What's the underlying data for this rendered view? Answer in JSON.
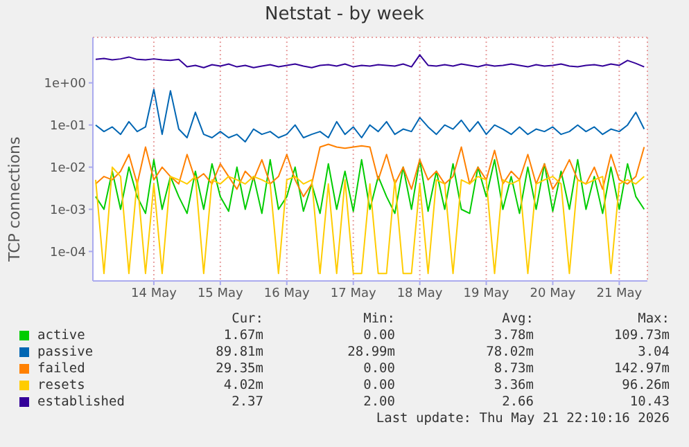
{
  "chart_data": {
    "type": "line",
    "title": "Netstat - by week",
    "ylabel": "TCP connections",
    "log": "y",
    "grid": true,
    "legend": "bottom",
    "xlim": [
      "2026-05-13T14:00",
      "2026-05-21T22:10"
    ],
    "xticks": [
      {
        "value": "2026-05-14T12:00",
        "label": "14 May"
      },
      {
        "value": "2026-05-15T12:00",
        "label": "15 May"
      },
      {
        "value": "2026-05-16T12:00",
        "label": "16 May"
      },
      {
        "value": "2026-05-17T12:00",
        "label": "17 May"
      },
      {
        "value": "2026-05-18T12:00",
        "label": "18 May"
      },
      {
        "value": "2026-05-19T12:00",
        "label": "19 May"
      },
      {
        "value": "2026-05-20T12:00",
        "label": "20 May"
      },
      {
        "value": "2026-05-21T12:00",
        "label": "21 May"
      }
    ],
    "ylim": [
      2e-05,
      12
    ],
    "yticks": [
      {
        "value": 0.0001,
        "label": "1e-04"
      },
      {
        "value": 0.001,
        "label": "1e-03"
      },
      {
        "value": 0.01,
        "label": "1e-02"
      },
      {
        "value": 0.1,
        "label": "1e-01"
      },
      {
        "value": 1,
        "label": "1e+00"
      }
    ],
    "x": [
      "2026-05-13T15:00",
      "2026-05-13T18:00",
      "2026-05-13T21:00",
      "2026-05-14T00:00",
      "2026-05-14T03:00",
      "2026-05-14T06:00",
      "2026-05-14T09:00",
      "2026-05-14T12:00",
      "2026-05-14T15:00",
      "2026-05-14T18:00",
      "2026-05-14T21:00",
      "2026-05-15T00:00",
      "2026-05-15T03:00",
      "2026-05-15T06:00",
      "2026-05-15T09:00",
      "2026-05-15T12:00",
      "2026-05-15T15:00",
      "2026-05-15T18:00",
      "2026-05-15T21:00",
      "2026-05-16T00:00",
      "2026-05-16T03:00",
      "2026-05-16T06:00",
      "2026-05-16T09:00",
      "2026-05-16T12:00",
      "2026-05-16T15:00",
      "2026-05-16T18:00",
      "2026-05-16T21:00",
      "2026-05-17T00:00",
      "2026-05-17T03:00",
      "2026-05-17T06:00",
      "2026-05-17T09:00",
      "2026-05-17T12:00",
      "2026-05-17T15:00",
      "2026-05-17T18:00",
      "2026-05-17T21:00",
      "2026-05-18T00:00",
      "2026-05-18T03:00",
      "2026-05-18T06:00",
      "2026-05-18T09:00",
      "2026-05-18T12:00",
      "2026-05-18T15:00",
      "2026-05-18T18:00",
      "2026-05-18T21:00",
      "2026-05-19T00:00",
      "2026-05-19T03:00",
      "2026-05-19T06:00",
      "2026-05-19T09:00",
      "2026-05-19T12:00",
      "2026-05-19T15:00",
      "2026-05-19T18:00",
      "2026-05-19T21:00",
      "2026-05-20T00:00",
      "2026-05-20T03:00",
      "2026-05-20T06:00",
      "2026-05-20T09:00",
      "2026-05-20T12:00",
      "2026-05-20T15:00",
      "2026-05-20T18:00",
      "2026-05-20T21:00",
      "2026-05-21T00:00",
      "2026-05-21T03:00",
      "2026-05-21T06:00",
      "2026-05-21T09:00",
      "2026-05-21T12:00",
      "2026-05-21T15:00",
      "2026-05-21T18:00",
      "2026-05-21T21:00"
    ],
    "series": [
      {
        "name": "active",
        "color": "#00cc00",
        "values": [
          0.002,
          0.001,
          0.008,
          0.001,
          0.01,
          0.002,
          0.0008,
          0.015,
          0.001,
          0.006,
          0.002,
          0.0008,
          0.008,
          0.001,
          0.012,
          0.002,
          0.0009,
          0.01,
          0.001,
          0.006,
          0.0008,
          0.015,
          0.001,
          0.002,
          0.01,
          0.0009,
          0.004,
          0.0008,
          0.012,
          0.001,
          0.008,
          0.0009,
          0.015,
          0.001,
          0.006,
          0.002,
          0.0008,
          0.01,
          0.001,
          0.015,
          0.0009,
          0.008,
          0.001,
          0.012,
          0.001,
          0.0008,
          0.01,
          0.002,
          0.015,
          0.001,
          0.006,
          0.0008,
          0.01,
          0.001,
          0.012,
          0.0009,
          0.008,
          0.001,
          0.015,
          0.001,
          0.006,
          0.0008,
          0.01,
          0.001,
          0.012,
          0.002,
          0.001
        ]
      },
      {
        "name": "passive",
        "color": "#0066b3",
        "values": [
          0.1,
          0.07,
          0.09,
          0.06,
          0.12,
          0.07,
          0.09,
          0.7,
          0.06,
          0.65,
          0.08,
          0.05,
          0.2,
          0.06,
          0.05,
          0.07,
          0.05,
          0.06,
          0.04,
          0.08,
          0.06,
          0.07,
          0.05,
          0.06,
          0.1,
          0.05,
          0.06,
          0.07,
          0.05,
          0.12,
          0.06,
          0.09,
          0.05,
          0.1,
          0.07,
          0.12,
          0.06,
          0.08,
          0.07,
          0.15,
          0.09,
          0.06,
          0.1,
          0.08,
          0.13,
          0.07,
          0.12,
          0.06,
          0.1,
          0.08,
          0.06,
          0.09,
          0.06,
          0.08,
          0.07,
          0.09,
          0.06,
          0.07,
          0.1,
          0.07,
          0.09,
          0.06,
          0.08,
          0.07,
          0.1,
          0.2,
          0.08
        ]
      },
      {
        "name": "failed",
        "color": "#ff8000",
        "values": [
          0.004,
          0.006,
          0.005,
          0.008,
          0.02,
          0.004,
          0.03,
          0.005,
          0.01,
          0.006,
          0.004,
          0.02,
          0.005,
          0.007,
          0.004,
          0.012,
          0.006,
          0.003,
          0.008,
          0.005,
          0.015,
          0.004,
          0.006,
          0.02,
          0.005,
          0.002,
          0.004,
          0.03,
          0.035,
          0.03,
          0.028,
          0.03,
          0.032,
          0.03,
          0.005,
          0.02,
          0.004,
          0.01,
          0.003,
          0.015,
          0.005,
          0.008,
          0.004,
          0.006,
          0.03,
          0.004,
          0.01,
          0.005,
          0.025,
          0.004,
          0.008,
          0.005,
          0.02,
          0.004,
          0.012,
          0.003,
          0.006,
          0.015,
          0.005,
          0.004,
          0.01,
          0.003,
          0.02,
          0.005,
          0.004,
          0.006,
          0.03
        ]
      },
      {
        "name": "resets",
        "color": "#ffcc00",
        "values": [
          0.005,
          3e-05,
          0.01,
          0.006,
          3e-05,
          0.005,
          3e-05,
          0.004,
          3e-05,
          0.006,
          0.005,
          0.004,
          0.006,
          3e-05,
          0.005,
          0.004,
          0.006,
          0.005,
          0.004,
          0.006,
          0.005,
          0.004,
          3e-05,
          0.005,
          0.006,
          0.004,
          0.005,
          3e-05,
          0.004,
          3e-05,
          0.005,
          3e-05,
          3e-05,
          0.004,
          3e-05,
          3e-05,
          0.005,
          3e-05,
          3e-05,
          0.004,
          3e-05,
          0.005,
          0.004,
          3e-05,
          0.005,
          0.004,
          0.006,
          0.005,
          3e-05,
          0.005,
          0.004,
          0.005,
          3e-05,
          0.004,
          0.005,
          0.006,
          0.004,
          3e-05,
          0.005,
          0.004,
          0.005,
          0.006,
          3e-05,
          0.004,
          0.005,
          0.004,
          0.006
        ]
      },
      {
        "name": "established",
        "color": "#330099",
        "values": [
          3.6,
          3.8,
          3.5,
          3.7,
          4.1,
          3.6,
          3.5,
          3.7,
          3.5,
          3.4,
          3.6,
          2.4,
          2.6,
          2.3,
          2.7,
          2.5,
          2.8,
          2.4,
          2.6,
          2.3,
          2.5,
          2.7,
          2.4,
          2.6,
          2.8,
          2.5,
          2.3,
          2.6,
          2.7,
          2.5,
          2.8,
          2.4,
          2.6,
          2.5,
          2.7,
          2.6,
          2.5,
          2.8,
          2.4,
          4.6,
          2.6,
          2.5,
          2.7,
          2.5,
          2.8,
          2.6,
          2.4,
          2.7,
          2.5,
          2.6,
          2.8,
          2.6,
          2.4,
          2.7,
          2.5,
          2.6,
          2.8,
          2.5,
          2.4,
          2.6,
          2.7,
          2.5,
          2.8,
          2.6,
          3.4,
          2.9,
          2.4
        ]
      }
    ],
    "annotations": [
      "Cur:",
      "Min:",
      "Avg:",
      "Max:",
      "1.67m",
      "0.00",
      "3.78m",
      "109.73m",
      "89.81m",
      "28.99m",
      "78.02m",
      "3.04",
      "29.35m",
      "0.00",
      "8.73m",
      "142.97m",
      "4.02m",
      "0.00",
      "3.36m",
      "96.26m",
      "2.37",
      "2.00",
      "2.66",
      "10.43",
      "Last update: Thu May 21 22:10:16 2026"
    ]
  }
}
